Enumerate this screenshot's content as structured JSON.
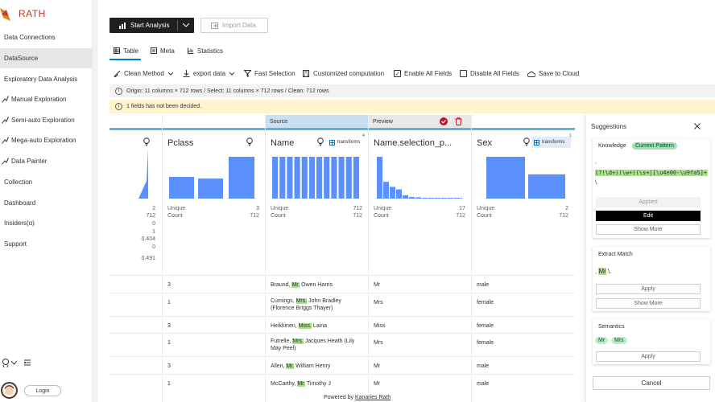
{
  "app": {
    "name": "RATH"
  },
  "sidebar": {
    "items": [
      {
        "label": "Data Connections",
        "icon": "link-icon",
        "active": false
      },
      {
        "label": "DataSource",
        "icon": "database-icon",
        "active": true
      },
      {
        "label": "Exploratory Data Analysis",
        "icon": "compass-icon",
        "active": false
      },
      {
        "label": "Manual Exploration",
        "icon": "chart-line-icon",
        "active": false
      },
      {
        "label": "Semi-auto Exploration",
        "icon": "lightbulb-icon",
        "active": false
      },
      {
        "label": "Mega-auto Exploration",
        "icon": "rocket-icon",
        "active": false
      },
      {
        "label": "Data Painter",
        "icon": "brush-icon",
        "active": false
      },
      {
        "label": "Collection",
        "icon": "collection-icon",
        "active": false
      },
      {
        "label": "Dashboard",
        "icon": "dashboard-icon",
        "active": false
      },
      {
        "label": "Insiders(α)",
        "icon": "insider-icon",
        "active": false
      },
      {
        "label": "Support",
        "icon": "support-icon",
        "active": false
      }
    ],
    "login_label": "Login"
  },
  "toolbar": {
    "start_label": "Start Analysis",
    "import_label": "Import Data"
  },
  "tabs": [
    {
      "label": "Table",
      "active": true
    },
    {
      "label": "Meta",
      "active": false
    },
    {
      "label": "Statistics",
      "active": false
    }
  ],
  "actions": {
    "clean_method": "Clean Method",
    "export_data": "export data",
    "fast_selection": "Fast Selection",
    "custom_computation": "Customized computation",
    "enable_all": "Enable All Fields",
    "disable_all": "Disable All Fields",
    "save_cloud": "Save to Cloud"
  },
  "info": {
    "origin": "Origin: 11 columns × 712 rows / Select: 11 columns × 712 rows / Clean: 712 rows",
    "warning": "1 fields has not been decided."
  },
  "grid": {
    "source_label": "Source",
    "preview_label": "Preview",
    "transforms_label": "transforms",
    "unique_label": "Unique",
    "count_label": "Count",
    "left_stats": [
      "2",
      "712",
      "0",
      "1",
      "0.404",
      "0",
      "0.491"
    ],
    "columns": [
      {
        "name": "Pclass",
        "unique": "3",
        "count": "712",
        "bars": [
          0.52,
          0.48,
          1.0
        ]
      },
      {
        "name": "Name",
        "unique": "712",
        "count": "712",
        "badge": "4",
        "bars": [
          1,
          1,
          1,
          1,
          1,
          1,
          1,
          1,
          1,
          1,
          1,
          1
        ]
      },
      {
        "name": "Name.selection_p...",
        "unique": "17",
        "count": "712",
        "bars": [
          1.0,
          0.4,
          0.28,
          0.22,
          0.08,
          0.04,
          0.03,
          0.02,
          0.02,
          0.02,
          0.01,
          0.01,
          0.01,
          0.01,
          0.01,
          0.01,
          0.01
        ]
      },
      {
        "name": "Sex",
        "unique": "2",
        "count": "712",
        "badge": "1",
        "bars": [
          1.0,
          0.58
        ]
      }
    ],
    "rows": [
      {
        "pclass": "3",
        "name_pre": "Braund, ",
        "name_hl": "Mr.",
        "name_post": " Owen Harris",
        "title": "Mr",
        "sex": "male"
      },
      {
        "pclass": "1",
        "name_pre": "Cumings, ",
        "name_hl": "Mrs.",
        "name_post": " John Bradley (Florence Briggs Thayer)",
        "title": "Mrs",
        "sex": "female"
      },
      {
        "pclass": "3",
        "name_pre": "Heikkinen, ",
        "name_hl": "Miss.",
        "name_post": " Laina",
        "title": "Miss",
        "sex": "female"
      },
      {
        "pclass": "1",
        "name_pre": "Futrelle, ",
        "name_hl": "Mrs.",
        "name_post": " Jacques Heath (Lily May Peel)",
        "title": "Mrs",
        "sex": "female"
      },
      {
        "pclass": "3",
        "name_pre": "Allen, ",
        "name_hl": "Mr.",
        "name_post": " William Henry",
        "title": "Mr",
        "sex": "male"
      },
      {
        "pclass": "1",
        "name_pre": "McCarthy, ",
        "name_hl": "Mr.",
        "name_post": " Timothy J",
        "title": "Mr",
        "sex": "male"
      }
    ]
  },
  "suggestions": {
    "title": "Suggestions",
    "knowledge_label": "Knowledge",
    "current_pattern_label": "Current Pattern",
    "pattern_dot": ",",
    "pattern_regex": "(?!\\d+)(\\w+)(\\s+|[\\u4e00-\\u9fa5]+)*",
    "pattern_tail": "\\.",
    "applied_label": "Applied",
    "edit_label": "Edit",
    "show_more_label": "Show More",
    "extract_label": "Extract Match",
    "extract_sample_pre": ",",
    "extract_sample_hl": "Mr",
    "extract_sample_post": "\\.",
    "apply_label": "Apply",
    "semantics_label": "Semantics",
    "semantic_tags": [
      "Mr",
      "Mrs"
    ],
    "cancel_label": "Cancel"
  },
  "footer": {
    "prefix": "Powered by ",
    "link": "Kanaries Rath"
  },
  "colors": {
    "accent": "#0078d4",
    "source": "#c7e0f4",
    "preview": "#e8e8e8",
    "bar": "#5b8ff9",
    "hl": "#a8e28a"
  }
}
